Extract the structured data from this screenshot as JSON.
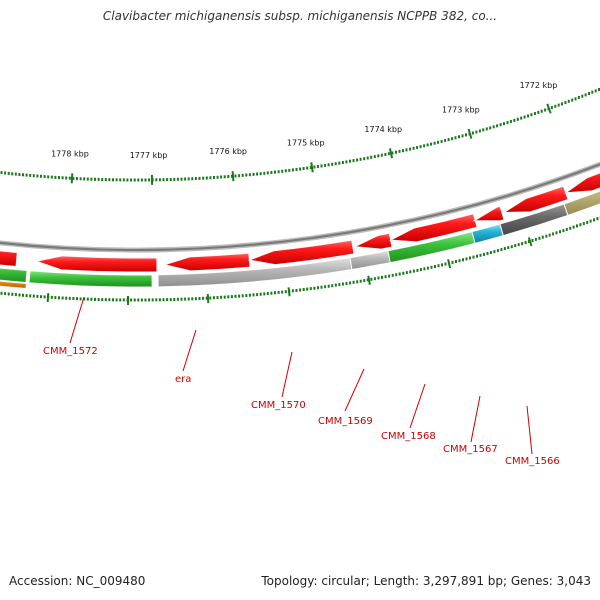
{
  "title": "Clavibacter michiganensis subsp. michiganensis NCPPB 382, co...",
  "footer": {
    "accession": "Accession: NC_009480",
    "summary": "Topology: circular; Length: 3,297,891 bp; Genes: 3,043"
  },
  "colors": {
    "forward_gene": "#ee1111",
    "reverse_gene_green": "#33bb33",
    "reverse_gene_grey": "#aaaaaa",
    "reverse_gene_dark": "#666666",
    "reverse_gene_cyan": "#22aacc",
    "reverse_gene_olive": "#bbb377",
    "reverse_gene_orange": "#ee8811",
    "backbone": "#888888",
    "tick": "#1a7a1a",
    "label": "#cc0000"
  },
  "kbp_labels": [
    "1778 kbp",
    "1777 kbp",
    "1776 kbp",
    "1775 kbp",
    "1774 kbp",
    "1773 kbp",
    "1772 kbp"
  ],
  "gene_labels": [
    "CMM_1572",
    "era",
    "CMM_1570",
    "CMM_1569",
    "CMM_1568",
    "CMM_1567",
    "CMM_1566"
  ]
}
